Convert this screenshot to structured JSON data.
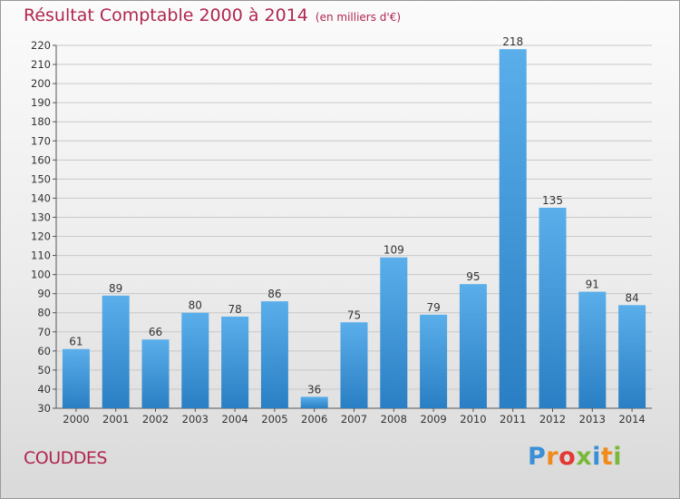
{
  "title": "Résultat Comptable 2000 à 2014",
  "unit": "(en milliers d'€)",
  "place": "COUDDES",
  "logo": "Proxiti",
  "colors": {
    "title": "#b0264f",
    "bar_top": "#5aaeea",
    "bar_bottom": "#2a7fc4",
    "grid": "#c8c8c8"
  },
  "chart_data": {
    "type": "bar",
    "categories": [
      "2000",
      "2001",
      "2002",
      "2003",
      "2004",
      "2005",
      "2006",
      "2007",
      "2008",
      "2009",
      "2010",
      "2011",
      "2012",
      "2013",
      "2014"
    ],
    "values": [
      61,
      89,
      66,
      80,
      78,
      86,
      36,
      75,
      109,
      79,
      95,
      218,
      135,
      91,
      84
    ],
    "ylim": [
      30,
      220
    ],
    "yticks": [
      30,
      40,
      50,
      60,
      70,
      80,
      90,
      100,
      110,
      120,
      130,
      140,
      150,
      160,
      170,
      180,
      190,
      200,
      210,
      220
    ],
    "grid": true,
    "data_labels": true
  }
}
